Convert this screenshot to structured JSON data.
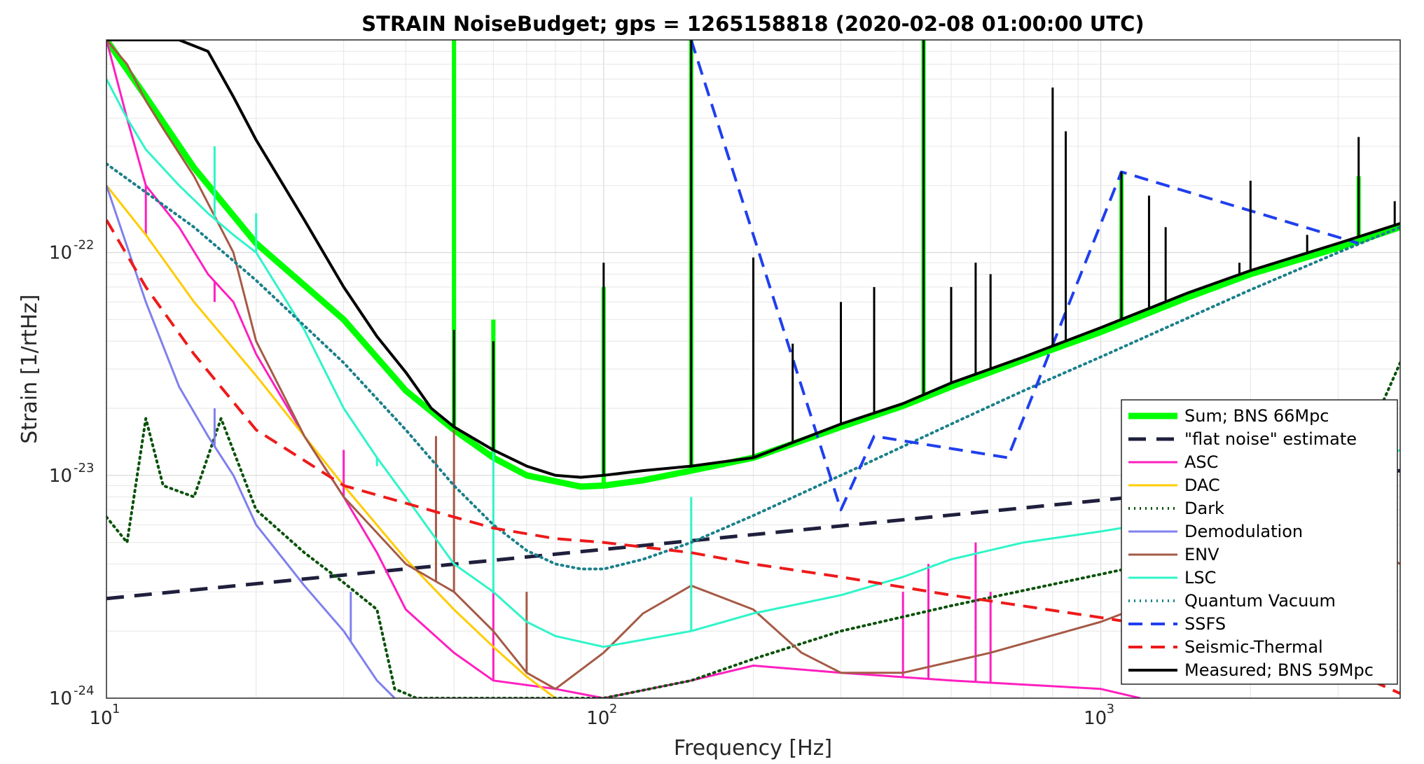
{
  "chart_data": {
    "type": "line",
    "title": "STRAIN NoiseBudget; gps = 1265158818 (2020-02-08 01:00:00 UTC)",
    "xlabel": "Frequency [Hz]",
    "ylabel": "Strain [1/rtHz]",
    "xscale": "log",
    "yscale": "log",
    "xlim": [
      10,
      4000
    ],
    "ylim": [
      1e-24,
      9e-22
    ],
    "grid": true,
    "legend_position": "bottom-right",
    "xticks": [
      {
        "value": 10,
        "base": "10",
        "exp": "1"
      },
      {
        "value": 100,
        "base": "10",
        "exp": "2"
      },
      {
        "value": 1000,
        "base": "10",
        "exp": "3"
      }
    ],
    "yticks": [
      {
        "value": 1e-24,
        "base": "10",
        "exp": "-24"
      },
      {
        "value": 1e-23,
        "base": "10",
        "exp": "-23"
      },
      {
        "value": 1e-22,
        "base": "10",
        "exp": "-22"
      }
    ],
    "series": [
      {
        "name": "Sum; BNS 66Mpc",
        "color": "#00ff00",
        "style": "solid",
        "width": 9,
        "x": [
          10,
          12,
          15,
          20,
          30,
          40,
          50,
          60,
          70,
          80,
          90,
          100,
          120,
          150,
          200,
          300,
          400,
          500,
          700,
          1000,
          1500,
          2000,
          3000,
          4000
        ],
        "y": [
          9e-22,
          5e-22,
          2.4e-22,
          1.1e-22,
          5e-23,
          2.4e-23,
          1.6e-23,
          1.2e-23,
          1e-23,
          9.4e-24,
          8.9e-24,
          9e-24,
          9.5e-24,
          1.05e-23,
          1.2e-23,
          1.65e-23,
          2.05e-23,
          2.5e-23,
          3.3e-23,
          4.4e-23,
          6.3e-23,
          8e-23,
          1.05e-22,
          1.3e-22
        ],
        "peaks": [
          {
            "x": 50,
            "y": 9e-22
          },
          {
            "x": 60,
            "y": 5e-23
          },
          {
            "x": 100,
            "y": 7e-23
          },
          {
            "x": 150,
            "y": 9e-22
          },
          {
            "x": 440,
            "y": 9e-22
          },
          {
            "x": 1100,
            "y": 2.3e-22
          },
          {
            "x": 3300,
            "y": 2.2e-22
          }
        ]
      },
      {
        "name": "\"flat noise\" estimate",
        "color": "#1f1f3d",
        "style": "dash",
        "width": 5,
        "x": [
          10,
          4000
        ],
        "y": [
          2.8e-24,
          1.05e-23
        ]
      },
      {
        "name": "ASC",
        "color": "#ff1fbf",
        "style": "solid",
        "width": 3,
        "x": [
          10,
          11,
          12,
          14,
          16,
          18,
          20,
          25,
          30,
          35,
          40,
          50,
          60,
          80,
          100,
          150,
          200,
          300,
          500,
          1000,
          1200
        ],
        "y": [
          9e-22,
          4e-22,
          2e-22,
          1.3e-22,
          8e-23,
          6e-23,
          3.5e-23,
          1.5e-23,
          8e-24,
          4.5e-24,
          2.5e-24,
          1.6e-24,
          1.2e-24,
          1.1e-24,
          1e-24,
          1.2e-24,
          1.4e-24,
          1.3e-24,
          1.2e-24,
          1.1e-24,
          1e-24
        ],
        "peaks": [
          {
            "x": 12,
            "y": 1.2e-22
          },
          {
            "x": 16.5,
            "y": 6e-23
          },
          {
            "x": 30,
            "y": 1.3e-23
          },
          {
            "x": 60,
            "y": 3e-24
          },
          {
            "x": 400,
            "y": 3e-24
          },
          {
            "x": 450,
            "y": 4e-24
          },
          {
            "x": 560,
            "y": 5e-24
          },
          {
            "x": 600,
            "y": 3e-24
          }
        ]
      },
      {
        "name": "DAC",
        "color": "#ffcc00",
        "style": "solid",
        "width": 3,
        "x": [
          10,
          12,
          15,
          20,
          30,
          40,
          50,
          60,
          70,
          80
        ],
        "y": [
          2e-22,
          1.2e-22,
          6e-23,
          2.8e-23,
          9e-24,
          4.2e-24,
          2.5e-24,
          1.7e-24,
          1.25e-24,
          1e-24
        ]
      },
      {
        "name": "Dark",
        "color": "#0a520a",
        "style": "dot",
        "width": 4,
        "x": [
          10,
          11,
          12,
          13,
          15,
          17,
          20,
          25,
          30,
          35,
          38,
          40,
          42,
          100,
          150,
          200,
          300,
          500,
          1000,
          2000,
          3000,
          4000
        ],
        "y": [
          6.5e-24,
          5e-24,
          1.8e-23,
          9e-24,
          8e-24,
          1.8e-23,
          7e-24,
          4.5e-24,
          3.3e-24,
          2.5e-24,
          1.1e-24,
          1.05e-24,
          1e-24,
          1e-24,
          1.2e-24,
          1.5e-24,
          2e-24,
          2.6e-24,
          3.6e-24,
          5e-24,
          7.5e-24,
          3.2e-23
        ]
      },
      {
        "name": "Demodulation",
        "color": "#8080ee",
        "style": "solid",
        "width": 3,
        "x": [
          10,
          12,
          14,
          16,
          18,
          20,
          25,
          30,
          35,
          38
        ],
        "y": [
          2e-22,
          6e-23,
          2.5e-23,
          1.5e-23,
          1e-23,
          6e-24,
          3.2e-24,
          2e-24,
          1.2e-24,
          1e-24
        ],
        "peaks": [
          {
            "x": 16.5,
            "y": 2e-23
          },
          {
            "x": 31,
            "y": 3e-24
          }
        ]
      },
      {
        "name": "ENV",
        "color": "#a55a46",
        "style": "solid",
        "width": 3,
        "x": [
          10,
          11,
          12,
          13,
          15,
          18,
          20,
          25,
          30,
          40,
          50,
          60,
          70,
          80,
          100,
          120,
          150,
          200,
          250,
          300,
          400,
          600,
          1000,
          1500,
          2000,
          3000,
          4000
        ],
        "y": [
          9e-22,
          7e-22,
          4.8e-22,
          3.6e-22,
          2.2e-22,
          1e-22,
          4e-23,
          1.5e-23,
          8e-24,
          4e-24,
          3e-24,
          2e-24,
          1.3e-24,
          1.1e-24,
          1.6e-24,
          2.4e-24,
          3.2e-24,
          2.5e-24,
          1.6e-24,
          1.3e-24,
          1.3e-24,
          1.6e-24,
          2.2e-24,
          3.1e-24,
          3.9e-24,
          5.7e-24,
          4e-24
        ],
        "peaks": [
          {
            "x": 46,
            "y": 1.5e-23
          },
          {
            "x": 50,
            "y": 1.6e-23
          },
          {
            "x": 70,
            "y": 3e-24
          }
        ]
      },
      {
        "name": "LSC",
        "color": "#2ef5c8",
        "style": "solid",
        "width": 3,
        "x": [
          10,
          11,
          12,
          14,
          16,
          18,
          20,
          25,
          30,
          35,
          40,
          50,
          60,
          70,
          80,
          100,
          150,
          200,
          300,
          400,
          500,
          700,
          1000,
          1500,
          2000,
          3000,
          4000
        ],
        "y": [
          6e-22,
          4e-22,
          2.9e-22,
          2e-22,
          1.5e-22,
          1.2e-22,
          1e-22,
          4.5e-23,
          2e-23,
          1.2e-23,
          8e-24,
          4e-24,
          3e-24,
          2.2e-24,
          1.9e-24,
          1.7e-24,
          2e-24,
          2.4e-24,
          2.9e-24,
          3.5e-24,
          4.2e-24,
          5e-24,
          5.6e-24,
          6.5e-24,
          8e-24,
          1e-23,
          1.3e-23
        ],
        "peaks": [
          {
            "x": 16.5,
            "y": 3e-22
          },
          {
            "x": 20,
            "y": 1.5e-22
          },
          {
            "x": 35,
            "y": 1.1e-23
          },
          {
            "x": 60,
            "y": 1.4e-23
          },
          {
            "x": 150,
            "y": 8e-24
          }
        ]
      },
      {
        "name": "Quantum Vacuum",
        "color": "#1a808a",
        "style": "dot",
        "width": 4,
        "x": [
          10,
          15,
          20,
          30,
          40,
          50,
          60,
          70,
          80,
          90,
          100,
          120,
          150,
          200,
          300,
          500,
          700,
          1000,
          2000,
          3000,
          4000
        ],
        "y": [
          2.5e-22,
          1.3e-22,
          7.5e-23,
          3.2e-23,
          1.6e-23,
          9e-24,
          6e-24,
          4.6e-24,
          4e-24,
          3.8e-24,
          3.8e-24,
          4.2e-24,
          5e-24,
          6.6e-24,
          1e-23,
          1.7e-23,
          2.4e-23,
          3.4e-23,
          6.8e-23,
          1e-22,
          1.3e-22
        ]
      },
      {
        "name": "SSFS",
        "color": "#1f3fee",
        "style": "dash",
        "width": 4,
        "x": [
          150,
          300,
          350,
          650,
          1100,
          3300
        ],
        "y": [
          9e-22,
          7e-24,
          1.5e-23,
          1.2e-23,
          2.3e-22,
          1.1e-22
        ]
      },
      {
        "name": "Seismic-Thermal",
        "color": "#ee1a1a",
        "style": "dash",
        "width": 4,
        "x": [
          10,
          12,
          15,
          20,
          30,
          40,
          50,
          60,
          80,
          100,
          150,
          200,
          300,
          500,
          1000,
          2000,
          3000,
          4000
        ],
        "y": [
          1.4e-22,
          7e-23,
          3.5e-23,
          1.6e-23,
          9e-24,
          7.5e-24,
          6.5e-24,
          5.8e-24,
          5.2e-24,
          5e-24,
          4.5e-24,
          4e-24,
          3.5e-24,
          2.9e-24,
          2.3e-24,
          1.8e-24,
          1.4e-24,
          1.05e-24
        ]
      },
      {
        "name": "Measured; BNS 59Mpc",
        "color": "#000000",
        "style": "solid",
        "width": 4,
        "x": [
          10,
          12,
          14,
          16,
          18,
          20,
          25,
          30,
          35,
          40,
          45,
          50,
          60,
          70,
          80,
          90,
          100,
          120,
          150,
          200,
          300,
          400,
          500,
          700,
          1000,
          1500,
          2000,
          3000,
          4000
        ],
        "y": [
          9e-22,
          9e-22,
          9e-22,
          8e-22,
          5e-22,
          3.2e-22,
          1.4e-22,
          7e-23,
          4.2e-23,
          2.9e-23,
          2e-23,
          1.65e-23,
          1.3e-23,
          1.1e-23,
          1e-23,
          9.8e-24,
          1e-23,
          1.05e-23,
          1.1e-23,
          1.2e-23,
          1.7e-23,
          2.1e-23,
          2.6e-23,
          3.4e-23,
          4.6e-23,
          6.6e-23,
          8.3e-23,
          1.1e-22,
          1.35e-22
        ],
        "peaks": [
          {
            "x": 50,
            "y": 4.5e-23
          },
          {
            "x": 60,
            "y": 4e-23
          },
          {
            "x": 100,
            "y": 9e-23
          },
          {
            "x": 150,
            "y": 9e-22
          },
          {
            "x": 200,
            "y": 9.5e-23
          },
          {
            "x": 240,
            "y": 3.9e-23
          },
          {
            "x": 300,
            "y": 6e-23
          },
          {
            "x": 350,
            "y": 7e-23
          },
          {
            "x": 440,
            "y": 9e-22
          },
          {
            "x": 500,
            "y": 7e-23
          },
          {
            "x": 560,
            "y": 9e-23
          },
          {
            "x": 600,
            "y": 8e-23
          },
          {
            "x": 800,
            "y": 5.5e-22
          },
          {
            "x": 850,
            "y": 3.5e-22
          },
          {
            "x": 1100,
            "y": 2.3e-22
          },
          {
            "x": 1250,
            "y": 1.8e-22
          },
          {
            "x": 1350,
            "y": 1.3e-22
          },
          {
            "x": 1900,
            "y": 9e-23
          },
          {
            "x": 2000,
            "y": 2.1e-22
          },
          {
            "x": 2600,
            "y": 1.2e-22
          },
          {
            "x": 3300,
            "y": 3.3e-22
          },
          {
            "x": 3900,
            "y": 1.7e-22
          }
        ]
      }
    ]
  }
}
